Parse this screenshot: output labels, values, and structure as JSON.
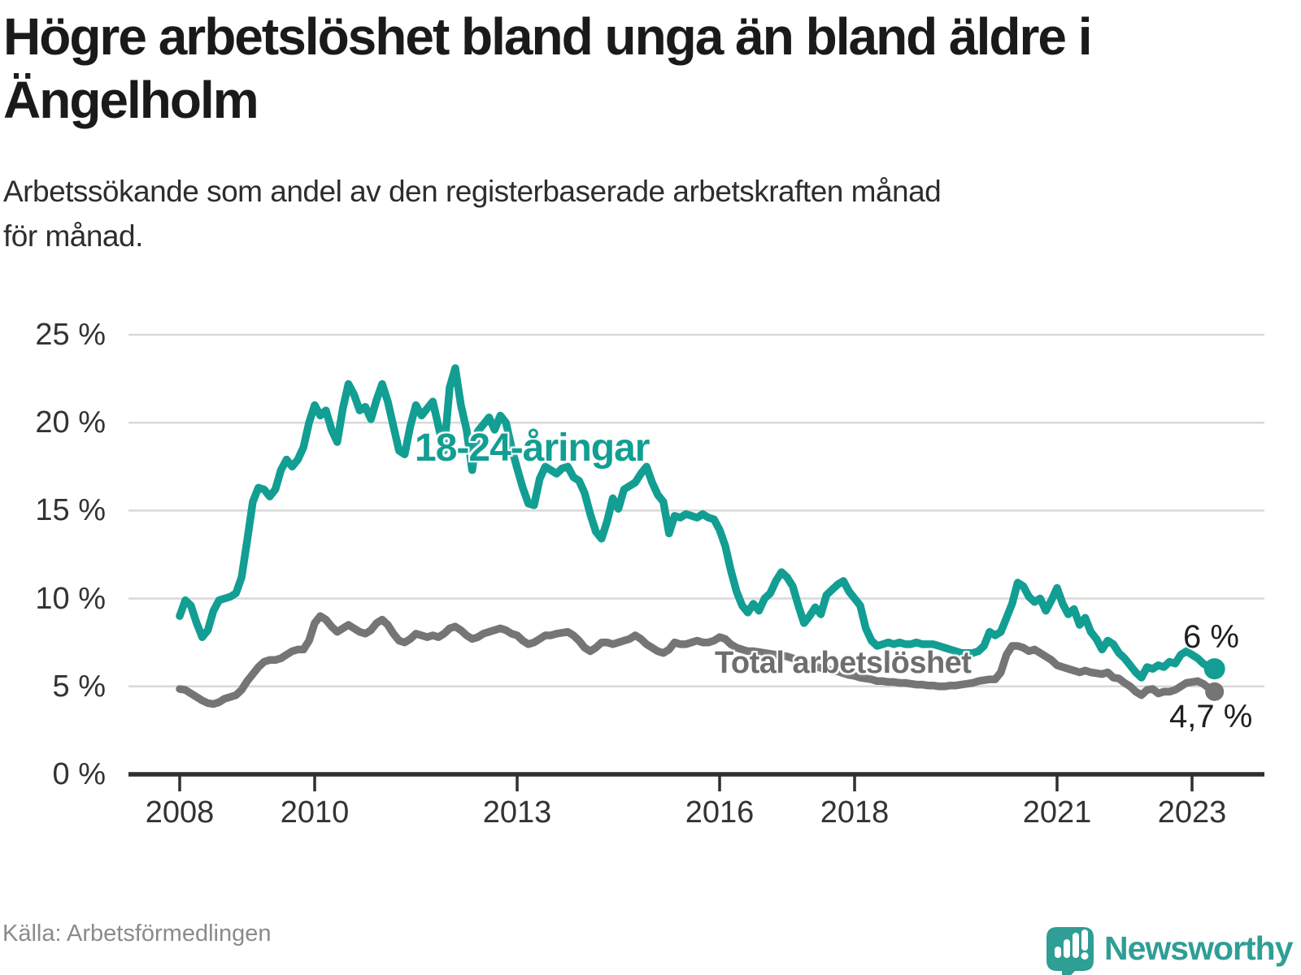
{
  "title": {
    "text": "Högre arbetslöshet bland unga än bland äldre i Ängelholm",
    "lines": [
      "Högre arbetslöshet bland unga än bland äldre i",
      "Ängelholm"
    ]
  },
  "subtitle": {
    "text": "Arbetssökande som andel av den registerbaserade arbetskraften månad för månad.",
    "lines": [
      "Arbetssökande som andel av den registerbaserade arbetskraften månad",
      "för månad."
    ]
  },
  "source": "Källa: Arbetsförmedlingen",
  "logo": {
    "brand": "Newsworthy"
  },
  "colors": {
    "young": "#129e92",
    "total": "#757575",
    "young_label": "#129e92",
    "total_label": "#6e6e6e",
    "grid": "#d9d9d9",
    "axis": "#2f2f2f",
    "title_text": "#1a1a1a",
    "source_text": "#8b8b8b",
    "logo_teal": "#2f9e95"
  },
  "chart_data": {
    "type": "line",
    "title": "Högre arbetslöshet bland unga än bland äldre i Ängelholm",
    "subtitle": "Arbetssökande som andel av den registerbaserade arbetskraften månad för månad.",
    "unit": "%",
    "frequency": "monthly",
    "grid": true,
    "xlim": [
      2007.4,
      2024.1
    ],
    "ylim": [
      0,
      25
    ],
    "x_ticks": [
      {
        "v": 2008,
        "label": "2008"
      },
      {
        "v": 2010,
        "label": "2010"
      },
      {
        "v": 2013,
        "label": "2013"
      },
      {
        "v": 2016,
        "label": "2016"
      },
      {
        "v": 2018,
        "label": "2018"
      },
      {
        "v": 2021,
        "label": "2021"
      },
      {
        "v": 2023,
        "label": "2023"
      }
    ],
    "y_ticks": [
      {
        "v": 0,
        "label": "0 %"
      },
      {
        "v": 5,
        "label": "5 %"
      },
      {
        "v": 10,
        "label": "10 %"
      },
      {
        "v": 15,
        "label": "15 %"
      },
      {
        "v": 20,
        "label": "20 %"
      },
      {
        "v": 25,
        "label": "25 %"
      }
    ],
    "series": [
      {
        "name": "Total arbetslöshet",
        "color": "#757575",
        "start_year": 2008,
        "end_label": "4,7 %",
        "end_value": 4.7,
        "values": [
          4.85,
          4.8,
          4.6,
          4.4,
          4.2,
          4.05,
          4.0,
          4.1,
          4.3,
          4.4,
          4.5,
          4.8,
          5.3,
          5.7,
          6.1,
          6.4,
          6.5,
          6.5,
          6.6,
          6.8,
          7.0,
          7.1,
          7.1,
          7.6,
          8.6,
          9.0,
          8.8,
          8.4,
          8.1,
          8.3,
          8.5,
          8.3,
          8.1,
          8.0,
          8.2,
          8.6,
          8.8,
          8.5,
          8.0,
          7.6,
          7.5,
          7.7,
          8.0,
          7.9,
          7.8,
          7.9,
          7.8,
          8.0,
          8.3,
          8.4,
          8.2,
          7.9,
          7.7,
          7.8,
          8.0,
          8.1,
          8.2,
          8.3,
          8.2,
          8.0,
          7.9,
          7.6,
          7.4,
          7.5,
          7.7,
          7.9,
          7.9,
          8.0,
          8.05,
          8.1,
          7.9,
          7.6,
          7.2,
          7.0,
          7.2,
          7.5,
          7.5,
          7.4,
          7.5,
          7.6,
          7.7,
          7.9,
          7.7,
          7.4,
          7.2,
          7.0,
          6.9,
          7.1,
          7.5,
          7.4,
          7.4,
          7.5,
          7.6,
          7.5,
          7.5,
          7.6,
          7.8,
          7.7,
          7.4,
          7.2,
          7.1,
          7.0,
          7.0,
          6.95,
          6.9,
          6.85,
          6.8,
          6.75,
          6.7,
          6.6,
          6.45,
          6.35,
          6.25,
          6.15,
          6.05,
          6.0,
          5.9,
          5.85,
          5.75,
          5.65,
          5.6,
          5.5,
          5.45,
          5.4,
          5.3,
          5.3,
          5.25,
          5.25,
          5.2,
          5.2,
          5.15,
          5.1,
          5.1,
          5.05,
          5.05,
          5.0,
          5.0,
          5.05,
          5.05,
          5.1,
          5.15,
          5.2,
          5.3,
          5.35,
          5.4,
          5.4,
          5.8,
          6.8,
          7.3,
          7.3,
          7.2,
          7.0,
          7.1,
          6.9,
          6.7,
          6.5,
          6.2,
          6.1,
          6.0,
          5.9,
          5.8,
          5.9,
          5.8,
          5.75,
          5.7,
          5.8,
          5.5,
          5.45,
          5.2,
          5.0,
          4.7,
          4.5,
          4.8,
          4.85,
          4.6,
          4.7,
          4.7,
          4.8,
          5.0,
          5.2,
          5.25,
          5.3,
          5.15,
          4.9,
          4.7
        ]
      },
      {
        "name": "18-24-åringar",
        "color": "#129e92",
        "start_year": 2008,
        "end_label": "6 %",
        "end_value": 6.0,
        "values": [
          9.0,
          9.9,
          9.6,
          8.6,
          7.8,
          8.2,
          9.3,
          9.9,
          10.0,
          10.1,
          10.3,
          11.2,
          13.3,
          15.5,
          16.3,
          16.2,
          15.8,
          16.2,
          17.3,
          17.9,
          17.5,
          17.9,
          18.6,
          20.0,
          21.0,
          20.4,
          20.7,
          19.6,
          18.9,
          20.8,
          22.2,
          21.6,
          20.7,
          20.9,
          20.2,
          21.3,
          22.2,
          21.2,
          19.8,
          18.4,
          18.2,
          19.8,
          21.0,
          20.4,
          20.8,
          21.2,
          19.8,
          18.4,
          22.0,
          23.1,
          21.0,
          19.6,
          17.3,
          19.5,
          19.9,
          20.3,
          19.6,
          20.4,
          20.0,
          18.6,
          17.4,
          16.3,
          15.4,
          15.3,
          16.8,
          17.5,
          17.3,
          17.1,
          17.4,
          17.5,
          16.9,
          16.7,
          16.0,
          14.8,
          13.8,
          13.4,
          14.4,
          15.7,
          15.1,
          16.2,
          16.4,
          16.6,
          17.1,
          17.5,
          16.6,
          15.9,
          15.5,
          13.7,
          14.7,
          14.6,
          14.8,
          14.7,
          14.6,
          14.8,
          14.6,
          14.5,
          13.9,
          13.0,
          11.6,
          10.4,
          9.6,
          9.2,
          9.7,
          9.3,
          10.0,
          10.3,
          11.0,
          11.5,
          11.2,
          10.7,
          9.6,
          8.6,
          9.0,
          9.5,
          9.1,
          10.2,
          10.5,
          10.8,
          11.0,
          10.4,
          10.0,
          9.6,
          8.3,
          7.6,
          7.3,
          7.4,
          7.5,
          7.4,
          7.5,
          7.4,
          7.4,
          7.5,
          7.4,
          7.4,
          7.4,
          7.3,
          7.2,
          7.1,
          7.0,
          6.9,
          6.9,
          6.9,
          7.0,
          7.3,
          8.1,
          7.9,
          8.1,
          8.9,
          9.7,
          10.9,
          10.7,
          10.1,
          9.8,
          10.0,
          9.3,
          9.9,
          10.6,
          9.7,
          9.1,
          9.4,
          8.5,
          8.9,
          8.1,
          7.7,
          7.1,
          7.6,
          7.4,
          6.9,
          6.6,
          6.2,
          5.8,
          5.5,
          6.1,
          6.0,
          6.2,
          6.1,
          6.4,
          6.3,
          6.8,
          7.0,
          6.8,
          6.6,
          6.3,
          6.1,
          6.0
        ]
      }
    ],
    "legend_position": "direct-line-labels"
  }
}
